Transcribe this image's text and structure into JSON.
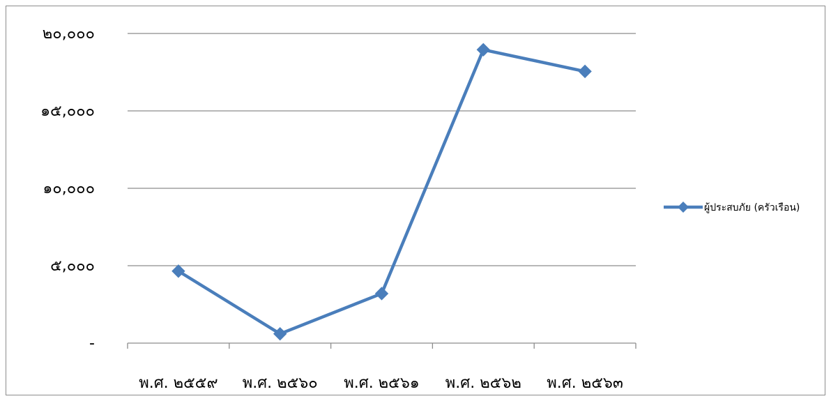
{
  "chart_data": {
    "type": "line",
    "title": "",
    "xlabel": "",
    "ylabel": "",
    "categories": [
      "พ.ศ. ๒๕๕๙",
      "พ.ศ. ๒๕๖๐",
      "พ.ศ. ๒๕๖๑",
      "พ.ศ. ๒๕๖๒",
      "พ.ศ. ๒๕๖๓"
    ],
    "series": [
      {
        "name": "ผู้ประสบภัย (ครัวเรือน)",
        "values": [
          4650,
          600,
          3200,
          18950,
          17550
        ],
        "color": "#4a7ebb",
        "marker": "diamond"
      }
    ],
    "ylim": [
      0,
      20000
    ],
    "yticks": [
      {
        "value": 0,
        "label": "-"
      },
      {
        "value": 5000,
        "label": "๕,๐๐๐"
      },
      {
        "value": 10000,
        "label": "๑๐,๐๐๐"
      },
      {
        "value": 15000,
        "label": "๑๕,๐๐๐"
      },
      {
        "value": 20000,
        "label": "๒๐,๐๐๐"
      }
    ],
    "grid": true,
    "legend_position": "right"
  }
}
